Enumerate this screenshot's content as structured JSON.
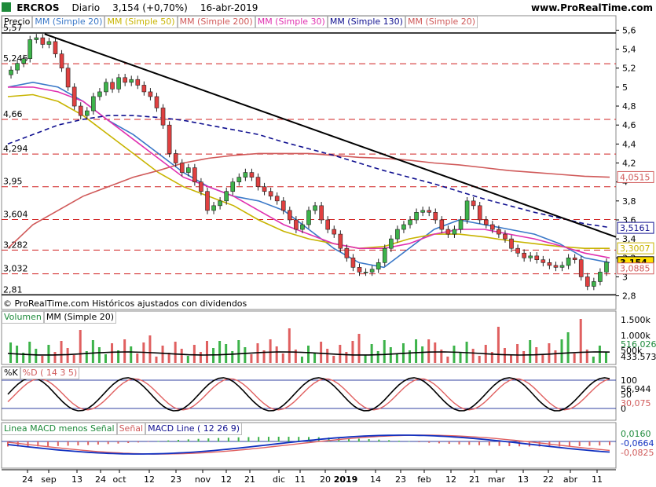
{
  "header": {
    "symbol": "ERCROS",
    "period": "Diario",
    "price": "3,154 (+0,70%)",
    "date": "16-abr-2019",
    "site": "www.ProRealTime.com"
  },
  "price_panel": {
    "legend": [
      "Precio",
      "MM (Simple 20)",
      "MM (Simple 50)",
      "MM (Simple 200)",
      "MM (Simple 30)",
      "MM (Simple 130)",
      "MM (Simple 20)"
    ],
    "legend_colors": [
      "#000000",
      "#3a78c8",
      "#c8b400",
      "#d05a5a",
      "#e030b0",
      "#101090",
      "#d05a5a"
    ],
    "left_levels": [
      "5,57",
      "5,246",
      "4,66",
      "4,294",
      "3,95",
      "3,604",
      "3,282",
      "3,032",
      "2,81"
    ],
    "right_ticks": [
      "5,6",
      "5,4",
      "5,2",
      "5",
      "4,8",
      "4,6",
      "4,4",
      "4,2",
      "4",
      "3,8",
      "3,6",
      "3,4",
      "3,2",
      "3",
      "2,8"
    ],
    "right_tags": [
      {
        "label": "4,0515",
        "color": "#d05a5a"
      },
      {
        "label": "3,5161",
        "color": "#101090"
      },
      {
        "label": "3,3007",
        "color": "#c8b400"
      },
      {
        "label": "3,154",
        "color": "#000000"
      },
      {
        "label": "3,0885",
        "color": "#d05a5a"
      }
    ],
    "copyright": "© ProRealTime.com  Históricos ajustados con dividendos"
  },
  "volume_panel": {
    "legend": [
      "Volumen",
      "MM (Simple 20)"
    ],
    "ticks": [
      "1.500k",
      "1.000k",
      "500k"
    ],
    "tags": [
      "516.026",
      "433.573"
    ]
  },
  "stoch_panel": {
    "legend": [
      "%K",
      "%D ( 14 3 5)"
    ],
    "ticks": [
      "100",
      "50",
      "0"
    ],
    "tags": [
      "56,944",
      "30,075"
    ]
  },
  "macd_panel": {
    "legend": [
      "Linea MACD menos Señal",
      "Señal",
      "MACD Line ( 12 26 9)"
    ],
    "tags": [
      "0,0160",
      "-0,0664",
      "-0,0825"
    ]
  },
  "x_axis": {
    "labels": [
      "24",
      "sep",
      "13",
      "24",
      "oct",
      "12",
      "23",
      "nov",
      "12",
      "21",
      "dic",
      "11",
      "20",
      "2019",
      "14",
      "23",
      "feb",
      "12",
      "21",
      "mar",
      "13",
      "22",
      "abr",
      "11"
    ]
  },
  "chart_data": {
    "type": "candlestick",
    "title": "ERCROS Diario",
    "ylim": [
      2.78,
      5.62
    ],
    "candles_close": [
      5.18,
      5.25,
      5.3,
      5.5,
      5.52,
      5.45,
      5.48,
      5.35,
      5.2,
      5.0,
      4.8,
      4.7,
      4.75,
      4.9,
      4.95,
      5.05,
      4.98,
      5.1,
      5.05,
      5.08,
      5.02,
      4.95,
      4.9,
      4.78,
      4.6,
      4.3,
      4.2,
      4.1,
      4.15,
      4.0,
      3.9,
      3.7,
      3.75,
      3.8,
      3.9,
      4.0,
      4.05,
      4.1,
      4.05,
      3.95,
      3.9,
      3.85,
      3.8,
      3.7,
      3.6,
      3.5,
      3.55,
      3.7,
      3.75,
      3.6,
      3.5,
      3.45,
      3.3,
      3.2,
      3.1,
      3.05,
      3.05,
      3.08,
      3.15,
      3.3,
      3.4,
      3.5,
      3.55,
      3.6,
      3.68,
      3.7,
      3.68,
      3.6,
      3.5,
      3.45,
      3.5,
      3.6,
      3.8,
      3.75,
      3.6,
      3.55,
      3.5,
      3.45,
      3.4,
      3.3,
      3.25,
      3.2,
      3.22,
      3.18,
      3.15,
      3.12,
      3.1,
      3.12,
      3.2,
      3.18,
      3.0,
      2.9,
      2.95,
      3.05,
      3.154
    ],
    "series": [
      {
        "name": "MM (Simple 20)",
        "color": "#3a78c8",
        "values": [
          5.0,
          5.05,
          5.0,
          4.85,
          4.65,
          4.5,
          4.3,
          4.1,
          3.95,
          3.85,
          3.8,
          3.7,
          3.5,
          3.3,
          3.15,
          3.1,
          3.3,
          3.5,
          3.6,
          3.55,
          3.5,
          3.45,
          3.35,
          3.2,
          3.15
        ]
      },
      {
        "name": "MM (Simple 50)",
        "color": "#c8b400",
        "values": [
          4.9,
          4.92,
          4.85,
          4.7,
          4.5,
          4.3,
          4.1,
          3.95,
          3.85,
          3.75,
          3.6,
          3.48,
          3.4,
          3.35,
          3.3,
          3.32,
          3.4,
          3.45,
          3.45,
          3.42,
          3.38,
          3.35,
          3.32,
          3.3,
          3.3
        ]
      },
      {
        "name": "MM (Simple 200)",
        "color": "#d05a5a",
        "values": [
          3.3,
          3.55,
          3.7,
          3.85,
          3.95,
          4.05,
          4.12,
          4.2,
          4.25,
          4.28,
          4.3,
          4.3,
          4.3,
          4.28,
          4.26,
          4.25,
          4.23,
          4.2,
          4.18,
          4.15,
          4.12,
          4.1,
          4.08,
          4.06,
          4.05
        ]
      },
      {
        "name": "MM (Simple 30)",
        "color": "#e030b0",
        "values": [
          5.0,
          5.0,
          4.95,
          4.85,
          4.65,
          4.45,
          4.25,
          4.05,
          3.95,
          3.85,
          3.7,
          3.55,
          3.45,
          3.35,
          3.3,
          3.3,
          3.35,
          3.45,
          3.5,
          3.5,
          3.45,
          3.4,
          3.33,
          3.25,
          3.2
        ]
      },
      {
        "name": "MM (Simple 130)",
        "color": "#101090",
        "values": [
          4.4,
          4.5,
          4.6,
          4.66,
          4.7,
          4.7,
          4.68,
          4.65,
          4.6,
          4.55,
          4.5,
          4.42,
          4.35,
          4.28,
          4.2,
          4.12,
          4.05,
          3.98,
          3.9,
          3.82,
          3.75,
          3.68,
          3.62,
          3.56,
          3.52
        ]
      }
    ],
    "trendline": [
      [
        0.07,
        5.56
      ],
      [
        1.0,
        3.42
      ]
    ]
  }
}
